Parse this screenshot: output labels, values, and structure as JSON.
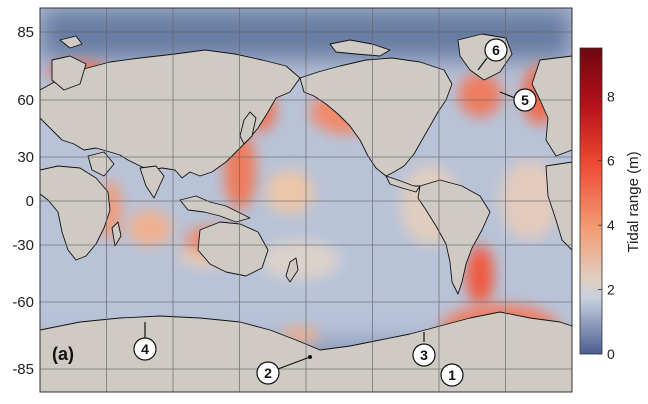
{
  "panel_label": "(a)",
  "y_ticks": [
    "85",
    "60",
    "30",
    "0",
    "-30",
    "-60",
    "-85"
  ],
  "colorbar": {
    "label": "Tidal range (m)",
    "ticks": [
      "0",
      "2",
      "4",
      "6",
      "8"
    ],
    "range": [
      0,
      9.5
    ],
    "colors": [
      "#4a5f8f",
      "#c6cfe0",
      "#dfd0c2",
      "#f2a079",
      "#ee4a33",
      "#b3101a",
      "#6e0710"
    ]
  },
  "markers": [
    {
      "label": "1",
      "has_leader": false
    },
    {
      "label": "2",
      "has_leader": true
    },
    {
      "label": "3",
      "has_leader": true
    },
    {
      "label": "4",
      "has_leader": true
    },
    {
      "label": "5",
      "has_leader": true
    },
    {
      "label": "6",
      "has_leader": true
    }
  ],
  "colors": {
    "land": "#cfcbc4",
    "ocean_base": "#b8c3d8",
    "grid": "#666666"
  }
}
